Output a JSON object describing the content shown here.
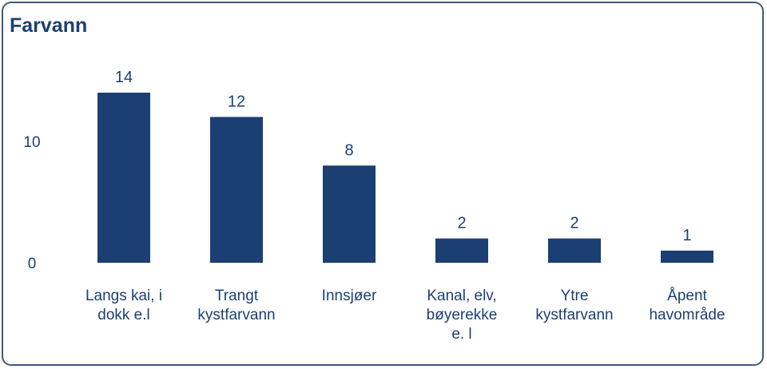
{
  "title": "Farvann",
  "colors": {
    "bar": "#1c3f73",
    "text": "#1c3f73",
    "border": "#3f5a78"
  },
  "chart_data": {
    "type": "bar",
    "title": "Farvann",
    "categories": [
      [
        "Langs kai, i",
        "dokk e.l"
      ],
      [
        "Trangt",
        "kystfarvann"
      ],
      [
        "Innsjøer"
      ],
      [
        "Kanal, elv,",
        "bøyerekke",
        "e. l"
      ],
      [
        "Ytre",
        "kystfarvann"
      ],
      [
        "Åpent",
        "havområde"
      ]
    ],
    "values": [
      14,
      12,
      8,
      2,
      2,
      1
    ],
    "yticks": [
      0,
      10
    ],
    "ylim": [
      0,
      14
    ],
    "xlabel": "",
    "ylabel": "",
    "grid": false,
    "legend": "none"
  }
}
